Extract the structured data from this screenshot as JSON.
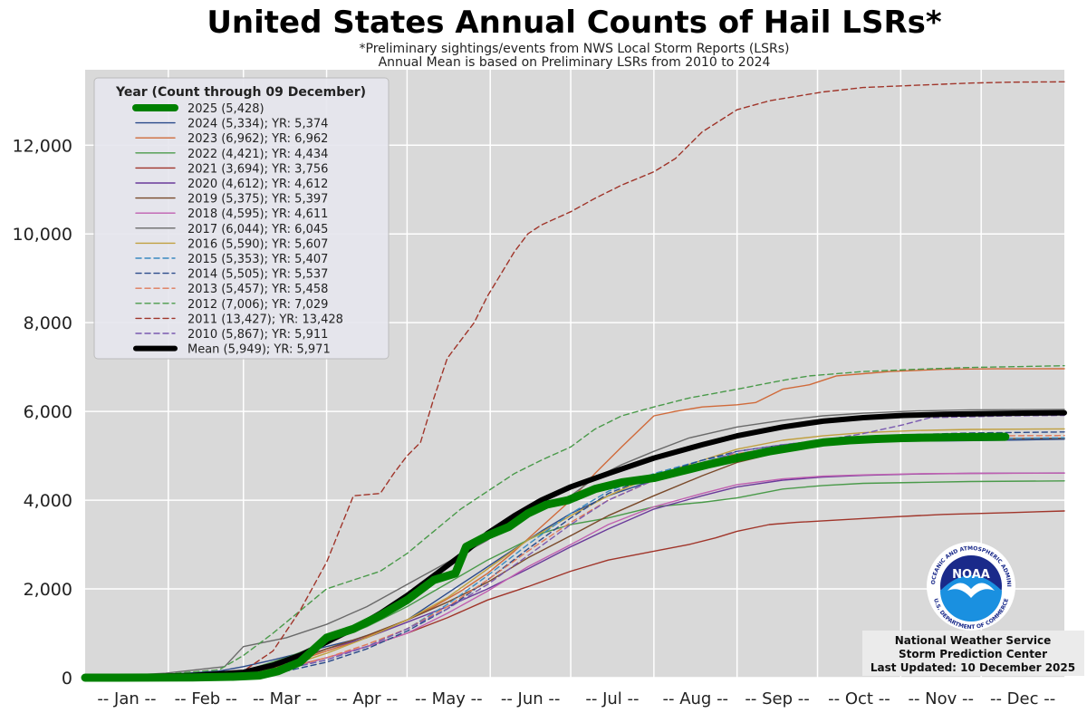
{
  "chart_data": {
    "type": "line",
    "title": "United States Annual Counts of Hail LSRs*",
    "subtitle_1": "*Preliminary sightings/events from NWS Local Storm Reports (LSRs)",
    "subtitle_2": "Annual Mean is based on Preliminary LSRs from 2010 to 2024",
    "legend_title": "Year (Count through 09 December)",
    "legend_placement": "top-left",
    "grid": true,
    "ylim": [
      0,
      13700
    ],
    "xlim": [
      0,
      365
    ],
    "y_ticks": [
      0,
      2000,
      4000,
      6000,
      8000,
      10000,
      12000
    ],
    "y_tick_labels": [
      "0",
      "2,000",
      "4,000",
      "6,000",
      "8,000",
      "10,000",
      "12,000"
    ],
    "month_labels": [
      "-- Jan --",
      "-- Feb --",
      "-- Mar --",
      "-- Apr --",
      "-- May --",
      "-- Jun --",
      "-- Jul --",
      "-- Aug --",
      "-- Sep --",
      "-- Oct --",
      "-- Nov --",
      "-- Dec --"
    ],
    "month_boundaries_day": [
      31,
      59,
      90,
      120,
      151,
      181,
      212,
      243,
      273,
      304,
      334
    ],
    "series": [
      {
        "name": "2025 (5,428)",
        "color": "#008000",
        "width": 9,
        "dash": "",
        "x": [
          0,
          40,
          55,
          65,
          72,
          80,
          90,
          100,
          110,
          120,
          130,
          138,
          142,
          150,
          158,
          165,
          172,
          180,
          190,
          200,
          212,
          222,
          232,
          243,
          255,
          265,
          275,
          285,
          295,
          305,
          315,
          325,
          343
        ],
        "y": [
          0,
          5,
          20,
          50,
          150,
          350,
          900,
          1100,
          1400,
          1750,
          2200,
          2350,
          2950,
          3200,
          3400,
          3700,
          3900,
          4000,
          4250,
          4400,
          4500,
          4650,
          4800,
          4950,
          5100,
          5200,
          5300,
          5350,
          5380,
          5400,
          5410,
          5420,
          5428
        ]
      },
      {
        "name": "2024 (5,334); YR: 5,374",
        "color": "#2a4a8a",
        "width": 1.4,
        "dash": "",
        "x": [
          0,
          30,
          50,
          59,
          70,
          80,
          90,
          100,
          110,
          120,
          130,
          140,
          150,
          160,
          170,
          181,
          195,
          212,
          230,
          243,
          260,
          275,
          290,
          305,
          325,
          350,
          365
        ],
        "y": [
          0,
          70,
          150,
          250,
          400,
          550,
          700,
          850,
          1050,
          1300,
          1700,
          2100,
          2500,
          2900,
          3300,
          3700,
          4100,
          4450,
          4800,
          5000,
          5150,
          5250,
          5300,
          5330,
          5340,
          5360,
          5374
        ]
      },
      {
        "name": "2023 (6,962); YR: 6,962",
        "color": "#d06a3a",
        "width": 1.4,
        "dash": "",
        "x": [
          0,
          30,
          59,
          70,
          80,
          90,
          100,
          110,
          120,
          130,
          140,
          150,
          160,
          170,
          181,
          190,
          200,
          212,
          220,
          230,
          243,
          250,
          260,
          270,
          280,
          290,
          300,
          320,
          340,
          365
        ],
        "y": [
          0,
          40,
          120,
          220,
          400,
          600,
          800,
          1050,
          1300,
          1600,
          1950,
          2350,
          2850,
          3400,
          4000,
          4600,
          5200,
          5900,
          6000,
          6100,
          6150,
          6200,
          6500,
          6600,
          6800,
          6850,
          6900,
          6950,
          6960,
          6962
        ]
      },
      {
        "name": "2022 (4,421); YR: 4,434",
        "color": "#4a9a4a",
        "width": 1.4,
        "dash": "",
        "x": [
          0,
          40,
          59,
          75,
          90,
          105,
          120,
          130,
          140,
          150,
          160,
          170,
          181,
          195,
          212,
          230,
          243,
          260,
          275,
          290,
          310,
          330,
          365
        ],
        "y": [
          0,
          80,
          150,
          450,
          800,
          1150,
          1600,
          1950,
          2300,
          2650,
          2950,
          3250,
          3450,
          3600,
          3850,
          3950,
          4050,
          4250,
          4330,
          4380,
          4400,
          4420,
          4434
        ]
      },
      {
        "name": "2021 (3,694); YR: 3,756",
        "color": "#a0352a",
        "width": 1.4,
        "dash": "",
        "x": [
          0,
          40,
          59,
          80,
          90,
          105,
          120,
          135,
          150,
          165,
          181,
          195,
          212,
          225,
          235,
          243,
          255,
          265,
          280,
          300,
          320,
          345,
          365
        ],
        "y": [
          0,
          40,
          100,
          300,
          450,
          700,
          1000,
          1350,
          1750,
          2050,
          2400,
          2650,
          2850,
          3000,
          3150,
          3300,
          3450,
          3500,
          3550,
          3620,
          3680,
          3720,
          3756
        ]
      },
      {
        "name": "2020 (4,612); YR: 4,612",
        "color": "#6a3a9a",
        "width": 1.4,
        "dash": "",
        "x": [
          0,
          40,
          59,
          75,
          90,
          105,
          120,
          135,
          150,
          165,
          181,
          195,
          212,
          230,
          243,
          260,
          275,
          290,
          310,
          330,
          365
        ],
        "y": [
          0,
          60,
          150,
          350,
          650,
          900,
          1250,
          1600,
          2000,
          2450,
          2950,
          3350,
          3800,
          4100,
          4300,
          4450,
          4520,
          4560,
          4590,
          4605,
          4612
        ]
      },
      {
        "name": "2019 (5,375); YR: 5,397",
        "color": "#7a4a2a",
        "width": 1.4,
        "dash": "",
        "x": [
          0,
          40,
          59,
          75,
          90,
          105,
          120,
          135,
          150,
          165,
          181,
          195,
          212,
          230,
          243,
          260,
          275,
          290,
          310,
          330,
          365
        ],
        "y": [
          0,
          50,
          120,
          300,
          650,
          950,
          1300,
          1700,
          2150,
          2700,
          3200,
          3650,
          4100,
          4550,
          4850,
          5100,
          5250,
          5320,
          5360,
          5385,
          5397
        ]
      },
      {
        "name": "2018 (4,595); YR: 4,611",
        "color": "#c060b0",
        "width": 1.4,
        "dash": "",
        "x": [
          0,
          40,
          59,
          75,
          90,
          105,
          120,
          135,
          150,
          165,
          181,
          195,
          212,
          230,
          243,
          260,
          275,
          290,
          310,
          330,
          365
        ],
        "y": [
          0,
          30,
          80,
          200,
          450,
          700,
          1000,
          1450,
          1950,
          2500,
          3000,
          3450,
          3850,
          4150,
          4350,
          4480,
          4540,
          4570,
          4595,
          4605,
          4611
        ]
      },
      {
        "name": "2017 (6,044); YR: 6,045",
        "color": "#6a6a6a",
        "width": 1.4,
        "dash": "",
        "x": [
          0,
          30,
          52,
          59,
          75,
          90,
          105,
          120,
          135,
          150,
          160,
          170,
          181,
          190,
          200,
          212,
          225,
          243,
          260,
          275,
          290,
          310,
          330,
          365
        ],
        "y": [
          0,
          100,
          250,
          700,
          900,
          1200,
          1600,
          2100,
          2600,
          3100,
          3500,
          3800,
          4100,
          4500,
          4800,
          5100,
          5400,
          5650,
          5800,
          5900,
          5960,
          6010,
          6035,
          6045
        ]
      },
      {
        "name": "2016 (5,590); YR: 5,607",
        "color": "#c0a040",
        "width": 1.4,
        "dash": "",
        "x": [
          0,
          40,
          59,
          75,
          90,
          105,
          120,
          135,
          150,
          165,
          181,
          195,
          212,
          230,
          243,
          260,
          275,
          290,
          310,
          330,
          365
        ],
        "y": [
          0,
          40,
          100,
          250,
          550,
          900,
          1300,
          1800,
          2450,
          3100,
          3650,
          4100,
          4550,
          4900,
          5150,
          5350,
          5450,
          5520,
          5570,
          5595,
          5607
        ]
      },
      {
        "name": "2015 (5,353); YR: 5,407",
        "color": "#3a8ac0",
        "width": 1.4,
        "dash": "6,4",
        "x": [
          0,
          40,
          59,
          75,
          90,
          105,
          120,
          135,
          150,
          165,
          181,
          195,
          212,
          230,
          243,
          260,
          275,
          290,
          310,
          330,
          365
        ],
        "y": [
          0,
          30,
          80,
          200,
          400,
          700,
          1100,
          1650,
          2300,
          3000,
          3700,
          4200,
          4600,
          4900,
          5050,
          5200,
          5280,
          5330,
          5360,
          5385,
          5407
        ]
      },
      {
        "name": "2014 (5,505); YR: 5,537",
        "color": "#2a4a8a",
        "width": 1.4,
        "dash": "6,4",
        "x": [
          0,
          40,
          59,
          75,
          90,
          105,
          120,
          135,
          150,
          165,
          181,
          195,
          212,
          230,
          243,
          260,
          275,
          290,
          310,
          330,
          365
        ],
        "y": [
          0,
          30,
          60,
          150,
          350,
          650,
          1050,
          1550,
          2200,
          2900,
          3600,
          4150,
          4550,
          4900,
          5100,
          5250,
          5350,
          5420,
          5480,
          5515,
          5537
        ]
      },
      {
        "name": "2013 (5,457); YR: 5,458",
        "color": "#e07a5a",
        "width": 1.4,
        "dash": "6,4",
        "x": [
          0,
          40,
          59,
          75,
          90,
          105,
          120,
          135,
          150,
          165,
          181,
          195,
          212,
          230,
          243,
          260,
          275,
          290,
          310,
          330,
          365
        ],
        "y": [
          0,
          40,
          90,
          220,
          450,
          750,
          1100,
          1600,
          2200,
          2850,
          3500,
          4000,
          4450,
          4850,
          5050,
          5200,
          5300,
          5380,
          5430,
          5450,
          5458
        ]
      },
      {
        "name": "2012 (7,006); YR: 7,029",
        "color": "#4a9a4a",
        "width": 1.4,
        "dash": "6,4",
        "x": [
          0,
          30,
          50,
          59,
          70,
          80,
          90,
          100,
          110,
          120,
          130,
          140,
          150,
          160,
          170,
          181,
          190,
          200,
          212,
          225,
          243,
          260,
          270,
          290,
          310,
          330,
          365
        ],
        "y": [
          0,
          80,
          180,
          500,
          1000,
          1500,
          2000,
          2200,
          2400,
          2800,
          3300,
          3800,
          4200,
          4600,
          4900,
          5200,
          5600,
          5900,
          6100,
          6300,
          6500,
          6700,
          6800,
          6900,
          6950,
          6990,
          7029
        ]
      },
      {
        "name": "2011 (13,427); YR: 13,428",
        "color": "#a0352a",
        "width": 1.4,
        "dash": "6,4",
        "x": [
          0,
          40,
          59,
          70,
          80,
          90,
          100,
          110,
          115,
          120,
          125,
          130,
          135,
          140,
          145,
          150,
          155,
          160,
          165,
          170,
          181,
          190,
          200,
          212,
          220,
          230,
          243,
          255,
          265,
          275,
          290,
          310,
          330,
          345,
          365
        ],
        "y": [
          0,
          50,
          150,
          600,
          1500,
          2600,
          4100,
          4150,
          4600,
          5000,
          5300,
          6300,
          7200,
          7600,
          8000,
          8600,
          9100,
          9600,
          10000,
          10200,
          10500,
          10800,
          11100,
          11400,
          11700,
          12300,
          12800,
          13000,
          13100,
          13200,
          13300,
          13350,
          13400,
          13420,
          13428
        ]
      },
      {
        "name": "2010 (5,867); YR: 5,911",
        "color": "#7a5ab0",
        "width": 1.4,
        "dash": "6,4",
        "x": [
          0,
          40,
          59,
          75,
          90,
          105,
          120,
          135,
          150,
          165,
          181,
          195,
          212,
          230,
          243,
          260,
          275,
          290,
          305,
          315,
          330,
          345,
          365
        ],
        "y": [
          0,
          30,
          80,
          200,
          400,
          700,
          1100,
          1550,
          2100,
          2750,
          3450,
          4000,
          4450,
          4800,
          5100,
          5250,
          5350,
          5500,
          5700,
          5860,
          5880,
          5900,
          5911
        ]
      },
      {
        "name": "Mean (5,949); YR: 5,971",
        "color": "#000000",
        "width": 6,
        "dash": "",
        "x": [
          0,
          40,
          59,
          70,
          80,
          90,
          100,
          110,
          120,
          130,
          140,
          150,
          160,
          170,
          181,
          195,
          212,
          230,
          243,
          260,
          275,
          290,
          305,
          320,
          335,
          350,
          365
        ],
        "y": [
          0,
          50,
          120,
          280,
          500,
          800,
          1100,
          1450,
          1850,
          2300,
          2750,
          3250,
          3650,
          4000,
          4300,
          4600,
          4950,
          5250,
          5450,
          5650,
          5780,
          5860,
          5910,
          5935,
          5950,
          5962,
          5971
        ]
      }
    ]
  },
  "logo": {
    "ring_top_text": "NATIONAL OCEANIC AND ATMOSPHERIC ADMINISTRATION",
    "ring_bottom_text": "U.S. DEPARTMENT OF COMMERCE",
    "center_text": "NOAA"
  },
  "credits": {
    "line1": "National Weather Service",
    "line2": "Storm Prediction Center",
    "line3": "Last Updated: 10 December 2025"
  }
}
